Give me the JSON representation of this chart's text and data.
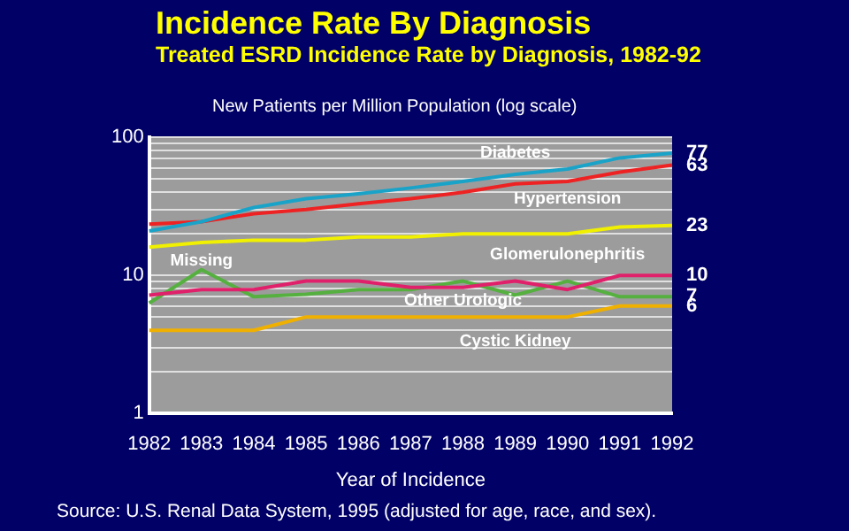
{
  "chart_data": {
    "type": "line",
    "title": "Incidence Rate By Diagnosis",
    "subtitle": "Treated ESRD Incidence Rate by Diagnosis, 1982-92",
    "ylabel": "New Patients per Million Population (log scale)",
    "xlabel": "Year of Incidence",
    "annotations": [
      "Source: U.S. Renal Data System, 1995 (adjusted for age, race, and sex)."
    ],
    "categories": [
      "1982",
      "1983",
      "1984",
      "1985",
      "1986",
      "1987",
      "1988",
      "1989",
      "1990",
      "1991",
      "1992"
    ],
    "log": true,
    "grid": "y",
    "legend": false,
    "marker": "none",
    "line_style": "solid",
    "ylim": [
      1,
      100
    ],
    "yticks": [
      1,
      {
        "value": 2,
        "label": null
      },
      {
        "value": 3,
        "label": null
      },
      {
        "value": 4,
        "label": null
      },
      {
        "value": 5,
        "label": null
      },
      {
        "value": 6,
        "label": null
      },
      {
        "value": 7,
        "label": null
      },
      {
        "value": 8,
        "label": null
      },
      {
        "value": 9,
        "label": null
      },
      10,
      {
        "value": 20,
        "label": null
      },
      {
        "value": 30,
        "label": null
      },
      {
        "value": 40,
        "label": null
      },
      {
        "value": 50,
        "label": null
      },
      {
        "value": 60,
        "label": null
      },
      {
        "value": 70,
        "label": null
      },
      {
        "value": 80,
        "label": null
      },
      {
        "value": 90,
        "label": null
      },
      100
    ],
    "series": [
      {
        "name": "Diabetes",
        "color": "#1aa3c8",
        "values": [
          21,
          24.5,
          31,
          36,
          39,
          43,
          48,
          54,
          59,
          71,
          77
        ],
        "value_labels": [
          null,
          null,
          null,
          null,
          null,
          null,
          null,
          null,
          null,
          null,
          "77"
        ]
      },
      {
        "name": "Hypertension",
        "color": "#ee2222",
        "values": [
          23.5,
          24.5,
          28,
          30,
          33,
          36,
          40,
          46,
          48,
          56,
          63
        ],
        "value_labels": [
          null,
          null,
          null,
          null,
          null,
          null,
          null,
          null,
          null,
          null,
          "63"
        ]
      },
      {
        "name": "Glomerulonephritis",
        "color": "#f0f000",
        "values": [
          16,
          17.3,
          18,
          18,
          19,
          19,
          20,
          20,
          20,
          22.4,
          23
        ],
        "value_labels": [
          null,
          null,
          null,
          null,
          null,
          null,
          null,
          null,
          null,
          null,
          "23"
        ]
      },
      {
        "name": "Other Urologic",
        "color": "#e0206a",
        "values": [
          7.2,
          7.9,
          7.9,
          9.1,
          9.1,
          8.2,
          8.2,
          9.1,
          7.9,
          10,
          10
        ],
        "value_labels": [
          null,
          null,
          null,
          null,
          null,
          null,
          null,
          null,
          null,
          null,
          "10"
        ]
      },
      {
        "name": "Missing",
        "color": "#55b040",
        "values": [
          6.3,
          11,
          7,
          7.3,
          7.9,
          7.9,
          9.1,
          7.2,
          9.1,
          7,
          7
        ],
        "value_labels": [
          null,
          null,
          null,
          null,
          null,
          null,
          null,
          null,
          null,
          null,
          "7"
        ]
      },
      {
        "name": "Cystic Kidney",
        "color": "#f0b000",
        "values": [
          4,
          4,
          4,
          5,
          5,
          5,
          5,
          5,
          5,
          6,
          6
        ],
        "value_labels": [
          null,
          null,
          null,
          null,
          null,
          null,
          null,
          null,
          null,
          null,
          "6"
        ]
      }
    ]
  }
}
